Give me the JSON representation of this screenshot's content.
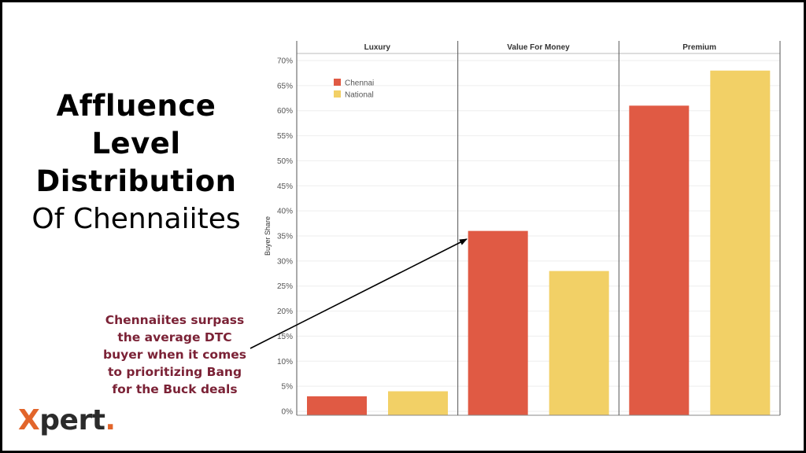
{
  "title": {
    "line1": "Affluence",
    "line2": "Level",
    "line3": "Distribution",
    "line4": "Of Chennaiites"
  },
  "annotation": {
    "line1": "Chennaiites surpass",
    "line2": "the average DTC",
    "line3": "buyer when it comes",
    "line4": "to prioritizing Bang",
    "line5": "for the Buck deals"
  },
  "logo": {
    "x": "X",
    "rest": "pert",
    "dot": "."
  },
  "colors": {
    "chennai": "#e05a44",
    "national": "#f2d066",
    "annotation": "#7b2236",
    "logo_accent": "#e2652b"
  },
  "chart_data": {
    "type": "bar",
    "facets": [
      "Luxury",
      "Value For Money",
      "Premium"
    ],
    "series": [
      {
        "name": "Chennai",
        "color": "#e05a44",
        "values": [
          3,
          36,
          61
        ]
      },
      {
        "name": "National",
        "color": "#f2d066",
        "values": [
          4,
          28,
          68
        ]
      }
    ],
    "ylabel": "Buyer Share",
    "ylim": [
      0,
      70
    ],
    "yticks": [
      "0%",
      "5%",
      "10%",
      "15%",
      "20%",
      "25%",
      "30%",
      "35%",
      "40%",
      "45%",
      "50%",
      "55%",
      "60%",
      "65%",
      "70%"
    ],
    "legend": "top-left",
    "grid": true
  }
}
